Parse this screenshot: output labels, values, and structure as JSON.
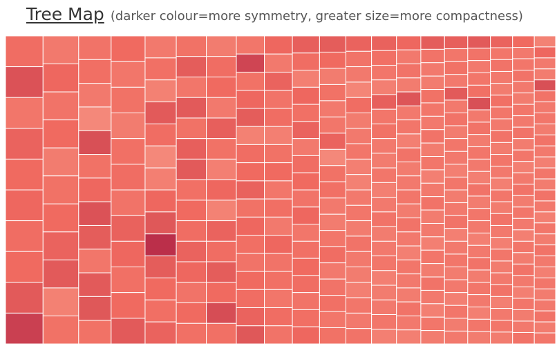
{
  "header": {
    "title": "Tree Map",
    "subtitle": "(darker colour=more symmetry, greater size=more compactness)"
  },
  "colors": {
    "background": "#ffffff",
    "cell_border": "#ffffff",
    "low_symmetry": "#fab5a0",
    "mid_symmetry": "#f06a60",
    "high_symmetry": "#b52848"
  },
  "chart_data": {
    "type": "treemap",
    "title": "Tree Map",
    "subtitle": "(darker colour=more symmetry, greater size=more compactness)",
    "encoding": {
      "size": "compactness",
      "color": "symmetry"
    },
    "legend": "none",
    "columns": [
      {
        "symmetry": [
          0.48,
          0.68,
          0.42,
          0.55,
          0.5,
          0.52,
          0.48,
          0.5,
          0.62,
          0.82
        ]
      },
      {
        "symmetry": [
          0.4,
          0.52,
          0.44,
          0.5,
          0.38,
          0.45,
          0.5,
          0.55,
          0.62,
          0.35,
          0.45
        ]
      },
      {
        "symmetry": [
          0.44,
          0.47,
          0.4,
          0.3,
          0.7,
          0.45,
          0.52,
          0.68,
          0.6,
          0.42,
          0.62,
          0.64,
          0.45
        ]
      },
      {
        "symmetry": [
          0.5,
          0.42,
          0.45,
          0.38,
          0.46,
          0.48,
          0.44,
          0.56,
          0.52,
          0.46,
          0.5,
          0.62
        ]
      },
      {
        "symmetry": [
          0.4,
          0.46,
          0.35,
          0.62,
          0.48,
          0.3,
          0.36,
          0.52,
          0.64,
          0.95,
          0.6,
          0.5,
          0.47,
          0.55
        ]
      },
      {
        "symmetry": [
          0.45,
          0.6,
          0.42,
          0.62,
          0.45,
          0.58,
          0.62,
          0.46,
          0.5,
          0.48,
          0.55,
          0.52,
          0.44,
          0.5,
          0.46
        ]
      },
      {
        "symmetry": [
          0.38,
          0.48,
          0.5,
          0.4,
          0.58,
          0.45,
          0.36,
          0.52,
          0.34,
          0.55,
          0.48,
          0.6,
          0.5,
          0.72,
          0.46
        ]
      },
      {
        "symmetry": [
          0.42,
          0.78,
          0.45,
          0.52,
          0.6,
          0.35,
          0.48,
          0.5,
          0.56,
          0.45,
          0.52,
          0.47,
          0.44,
          0.5,
          0.48,
          0.55,
          0.64
        ]
      },
      {
        "symmetry": [
          0.52,
          0.4,
          0.55,
          0.44,
          0.48,
          0.36,
          0.45,
          0.5,
          0.42,
          0.47,
          0.4,
          0.52,
          0.44,
          0.46,
          0.42,
          0.48,
          0.44
        ]
      },
      {
        "symmetry": [
          0.58,
          0.48,
          0.36,
          0.52,
          0.46,
          0.55,
          0.4,
          0.48,
          0.5,
          0.44,
          0.52,
          0.42,
          0.46,
          0.5,
          0.48,
          0.44,
          0.47,
          0.52
        ]
      },
      {
        "symmetry": [
          0.6,
          0.5,
          0.38,
          0.45,
          0.4,
          0.42,
          0.55,
          0.3,
          0.45,
          0.46,
          0.4,
          0.38,
          0.42,
          0.48,
          0.4,
          0.44,
          0.46,
          0.42,
          0.45
        ]
      },
      {
        "symmetry": [
          0.55,
          0.44,
          0.4,
          0.32,
          0.48,
          0.38,
          0.4,
          0.42,
          0.36,
          0.35,
          0.4,
          0.42,
          0.38,
          0.44,
          0.4,
          0.38,
          0.36,
          0.42,
          0.4,
          0.44
        ]
      },
      {
        "symmetry": [
          0.56,
          0.46,
          0.42,
          0.36,
          0.58,
          0.42,
          0.45,
          0.4,
          0.38,
          0.42,
          0.36,
          0.4,
          0.44,
          0.38,
          0.4,
          0.42,
          0.36,
          0.38,
          0.4,
          0.42,
          0.36
        ]
      },
      {
        "symmetry": [
          0.52,
          0.4,
          0.44,
          0.38,
          0.66,
          0.4,
          0.42,
          0.36,
          0.44,
          0.38,
          0.4,
          0.42,
          0.38,
          0.44,
          0.4,
          0.36,
          0.42,
          0.4,
          0.38,
          0.44,
          0.4,
          0.36
        ]
      },
      {
        "symmetry": [
          0.6,
          0.44,
          0.4,
          0.38,
          0.45,
          0.42,
          0.4,
          0.44,
          0.38,
          0.42,
          0.36,
          0.4,
          0.44,
          0.38,
          0.4,
          0.36,
          0.42,
          0.38,
          0.44,
          0.4,
          0.36,
          0.42,
          0.38
        ]
      },
      {
        "symmetry": [
          0.58,
          0.42,
          0.45,
          0.4,
          0.62,
          0.4,
          0.44,
          0.38,
          0.42,
          0.4,
          0.36,
          0.42,
          0.38,
          0.4,
          0.44,
          0.36,
          0.4,
          0.42,
          0.38,
          0.4,
          0.36,
          0.42,
          0.38,
          0.4
        ]
      },
      {
        "symmetry": [
          0.62,
          0.44,
          0.4,
          0.42,
          0.46,
          0.7,
          0.4,
          0.44,
          0.38,
          0.42,
          0.4,
          0.36,
          0.44,
          0.38,
          0.42,
          0.4,
          0.36,
          0.4,
          0.44,
          0.38,
          0.42,
          0.4,
          0.36,
          0.42,
          0.38
        ]
      },
      {
        "symmetry": [
          0.55,
          0.42,
          0.44,
          0.4,
          0.38,
          0.46,
          0.42,
          0.4,
          0.44,
          0.38,
          0.42,
          0.4,
          0.36,
          0.42,
          0.38,
          0.44,
          0.4,
          0.36,
          0.42,
          0.38,
          0.4,
          0.44,
          0.36,
          0.4,
          0.42,
          0.38
        ]
      },
      {
        "symmetry": [
          0.5,
          0.4,
          0.42,
          0.44,
          0.4,
          0.38,
          0.42,
          0.4,
          0.44,
          0.38,
          0.42,
          0.36,
          0.4,
          0.44,
          0.38,
          0.42,
          0.4,
          0.36,
          0.42,
          0.38,
          0.44,
          0.4,
          0.36,
          0.42,
          0.38,
          0.4,
          0.44
        ]
      },
      {
        "symmetry": [
          0.34,
          0.52,
          0.4,
          0.38,
          0.7,
          0.44,
          0.4,
          0.42,
          0.38,
          0.44,
          0.4,
          0.36,
          0.42,
          0.38,
          0.44,
          0.4,
          0.36,
          0.42,
          0.38,
          0.44,
          0.4,
          0.36,
          0.42,
          0.38,
          0.4,
          0.44,
          0.38,
          0.42
        ]
      }
    ]
  }
}
